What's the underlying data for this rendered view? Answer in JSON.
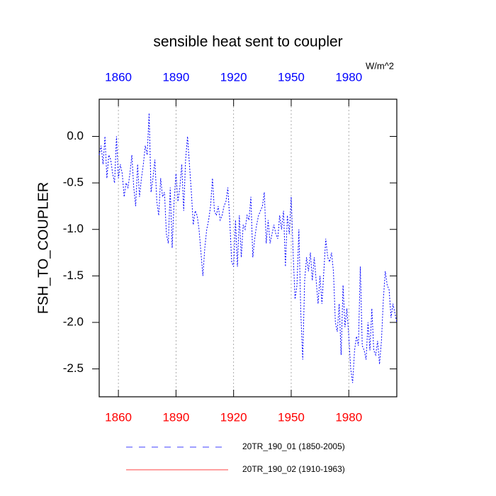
{
  "chart_data": {
    "type": "line",
    "title": "sensible heat sent to coupler",
    "units": "W/m^2",
    "y_label": "FSH_TO_COUPLER",
    "xlim": [
      1850,
      2005
    ],
    "xticks": [
      1860,
      1890,
      1920,
      1950,
      1980
    ],
    "ylim": [
      -2.8,
      0.4
    ],
    "yticks": [
      {
        "value": 0,
        "label": "0.0"
      },
      -0.5,
      {
        "value": -1,
        "label": "-1.0"
      },
      -1.5,
      {
        "value": -2,
        "label": "-2.0"
      },
      -2.5
    ],
    "grid": "x",
    "series": [
      {
        "name": "20TR_190_01 (1850-2005)",
        "color": "#0000ff",
        "dash": "dashed",
        "x": [
          1850,
          1851,
          1852,
          1853,
          1854,
          1855,
          1856,
          1857,
          1858,
          1859,
          1860,
          1861,
          1862,
          1863,
          1864,
          1865,
          1866,
          1867,
          1868,
          1869,
          1870,
          1871,
          1872,
          1873,
          1874,
          1875,
          1876,
          1877,
          1878,
          1879,
          1880,
          1881,
          1882,
          1883,
          1884,
          1885,
          1886,
          1887,
          1888,
          1889,
          1890,
          1891,
          1892,
          1893,
          1894,
          1895,
          1896,
          1897,
          1898,
          1899,
          1900,
          1901,
          1902,
          1903,
          1904,
          1905,
          1906,
          1907,
          1908,
          1909,
          1910,
          1911,
          1912,
          1913,
          1914,
          1915,
          1916,
          1917,
          1918,
          1919,
          1920,
          1921,
          1922,
          1923,
          1924,
          1925,
          1926,
          1927,
          1928,
          1929,
          1930,
          1931,
          1932,
          1933,
          1934,
          1935,
          1936,
          1937,
          1938,
          1939,
          1940,
          1941,
          1942,
          1943,
          1944,
          1945,
          1946,
          1947,
          1948,
          1949,
          1950,
          1951,
          1952,
          1953,
          1954,
          1955,
          1956,
          1957,
          1958,
          1959,
          1960,
          1961,
          1962,
          1963,
          1964,
          1965,
          1966,
          1967,
          1968,
          1969,
          1970,
          1971,
          1972,
          1973,
          1974,
          1975,
          1976,
          1977,
          1978,
          1979,
          1980,
          1981,
          1982,
          1983,
          1984,
          1985,
          1986,
          1987,
          1988,
          1989,
          1990,
          1991,
          1992,
          1993,
          1994,
          1995,
          1996,
          1997,
          1998,
          1999,
          2000,
          2001,
          2002,
          2003,
          2004,
          2005
        ],
        "values": [
          -0.2,
          -0.1,
          -0.3,
          0.0,
          -0.45,
          -0.2,
          -0.25,
          -0.4,
          -0.5,
          0.0,
          -0.45,
          -0.3,
          -0.4,
          -0.65,
          -0.5,
          -0.55,
          -0.4,
          -0.2,
          -0.55,
          -0.75,
          -0.3,
          -0.65,
          -0.45,
          -0.3,
          -0.1,
          -0.2,
          0.25,
          -0.6,
          -0.45,
          -0.25,
          -0.7,
          -0.85,
          -0.45,
          -0.65,
          -0.6,
          -1.05,
          -1.15,
          -0.55,
          -1.2,
          -0.7,
          -0.4,
          -0.7,
          -0.55,
          -0.3,
          -0.8,
          -0.25,
          0.0,
          -0.3,
          -0.6,
          -0.95,
          -0.8,
          -0.85,
          -1.0,
          -1.25,
          -1.5,
          -1.2,
          -1.0,
          -0.9,
          -0.75,
          -0.45,
          -0.8,
          -0.85,
          -0.75,
          -0.9,
          -0.85,
          -0.75,
          -0.7,
          -0.55,
          -0.9,
          -1.35,
          -1.4,
          -0.9,
          -1.4,
          -0.85,
          -1.3,
          -0.95,
          -1.0,
          -0.85,
          -0.9,
          -0.65,
          -1.3,
          -1.1,
          -0.95,
          -0.85,
          -0.8,
          -0.75,
          -0.6,
          -1.15,
          -0.9,
          -1.15,
          -1.05,
          -0.95,
          -1.05,
          -1.1,
          -0.85,
          -1.0,
          -0.8,
          -1.4,
          -0.85,
          -1.05,
          -0.65,
          -1.25,
          -1.75,
          -1.6,
          -1.0,
          -1.9,
          -2.4,
          -1.55,
          -1.3,
          -1.45,
          -1.25,
          -1.55,
          -1.3,
          -1.55,
          -1.8,
          -1.5,
          -1.8,
          -1.45,
          -1.1,
          -1.3,
          -1.35,
          -1.25,
          -1.45,
          -2.0,
          -2.1,
          -1.8,
          -2.35,
          -1.6,
          -2.05,
          -1.85,
          -2.15,
          -2.5,
          -2.65,
          -2.3,
          -2.15,
          -2.25,
          -1.4,
          -2.25,
          -2.3,
          -2.4,
          -2.0,
          -2.3,
          -1.85,
          -2.3,
          -2.35,
          -2.2,
          -2.45,
          -2.2,
          -1.75,
          -1.45,
          -1.6,
          -1.65,
          -1.95,
          -1.8,
          -1.9,
          -2.0
        ]
      },
      {
        "name": "20TR_190_02 (1910-1963)",
        "color": "#ff0000",
        "dash": "solid",
        "x": [],
        "values": []
      }
    ]
  }
}
